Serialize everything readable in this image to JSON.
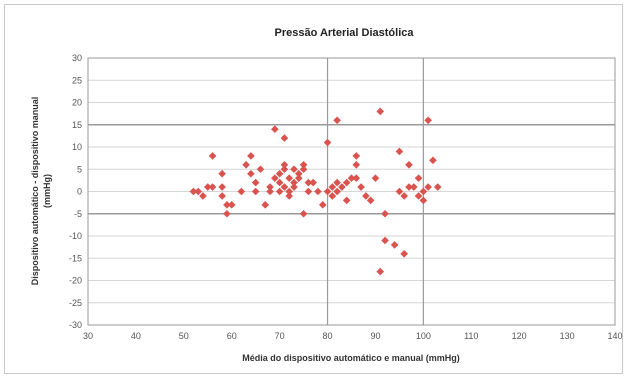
{
  "chart_data": {
    "type": "scatter",
    "title": "Pressão Arterial Diastólica",
    "xlabel": "Média do dispositivo automático e manual (mmHg)",
    "ylabel_line1": "Dispositivo automático - dispositivo manual",
    "ylabel_line2": "(mmHg)",
    "xlim": [
      30,
      140
    ],
    "ylim": [
      -30,
      30
    ],
    "xticks": [
      "30",
      "40",
      "50",
      "60",
      "70",
      "80",
      "90",
      "100",
      "110",
      "120",
      "130",
      "140"
    ],
    "yticks": [
      "30",
      "25",
      "20",
      "15",
      "10",
      "5",
      "0",
      "-5",
      "-10",
      "-15",
      "-20",
      "-25",
      "-30"
    ],
    "marker_color": "#d9534f",
    "reference_lines": {
      "horizontal": [
        15,
        -5
      ],
      "horizontal_light": [
        25,
        20,
        10,
        5,
        0,
        -10,
        -15,
        -20,
        -25
      ],
      "vertical": [
        80,
        100
      ]
    },
    "series": [
      {
        "points": [
          [
            52,
            0
          ],
          [
            53,
            0
          ],
          [
            54,
            -1
          ],
          [
            55,
            1
          ],
          [
            56,
            1
          ],
          [
            56,
            8
          ],
          [
            58,
            4
          ],
          [
            58,
            1
          ],
          [
            58,
            -1
          ],
          [
            59,
            -3
          ],
          [
            59,
            -5
          ],
          [
            60,
            -3
          ],
          [
            62,
            0
          ],
          [
            63,
            6
          ],
          [
            64,
            8
          ],
          [
            64,
            4
          ],
          [
            65,
            2
          ],
          [
            65,
            0
          ],
          [
            66,
            5
          ],
          [
            67,
            -3
          ],
          [
            68,
            0
          ],
          [
            68,
            1
          ],
          [
            69,
            3
          ],
          [
            69,
            14
          ],
          [
            70,
            0
          ],
          [
            70,
            2
          ],
          [
            70,
            4
          ],
          [
            71,
            5
          ],
          [
            71,
            6
          ],
          [
            71,
            12
          ],
          [
            71,
            1
          ],
          [
            72,
            -1
          ],
          [
            72,
            0
          ],
          [
            72,
            3
          ],
          [
            73,
            2
          ],
          [
            73,
            5
          ],
          [
            73,
            1
          ],
          [
            74,
            3
          ],
          [
            74,
            4
          ],
          [
            75,
            -5
          ],
          [
            75,
            5
          ],
          [
            75,
            6
          ],
          [
            76,
            0
          ],
          [
            76,
            2
          ],
          [
            77,
            2
          ],
          [
            78,
            0
          ],
          [
            79,
            -3
          ],
          [
            80,
            11
          ],
          [
            80,
            0
          ],
          [
            81,
            -1
          ],
          [
            81,
            1
          ],
          [
            82,
            0
          ],
          [
            82,
            2
          ],
          [
            82,
            16
          ],
          [
            83,
            1
          ],
          [
            84,
            2
          ],
          [
            84,
            -2
          ],
          [
            85,
            3
          ],
          [
            86,
            3
          ],
          [
            86,
            6
          ],
          [
            86,
            8
          ],
          [
            87,
            1
          ],
          [
            88,
            -1
          ],
          [
            89,
            -2
          ],
          [
            90,
            3
          ],
          [
            91,
            18
          ],
          [
            91,
            -18
          ],
          [
            92,
            -11
          ],
          [
            92,
            -5
          ],
          [
            94,
            -12
          ],
          [
            95,
            9
          ],
          [
            95,
            0
          ],
          [
            96,
            -1
          ],
          [
            96,
            -14
          ],
          [
            97,
            6
          ],
          [
            97,
            1
          ],
          [
            98,
            1
          ],
          [
            99,
            3
          ],
          [
            99,
            -1
          ],
          [
            100,
            0
          ],
          [
            100,
            -2
          ],
          [
            101,
            16
          ],
          [
            101,
            1
          ],
          [
            102,
            7
          ],
          [
            103,
            1
          ]
        ]
      }
    ]
  }
}
